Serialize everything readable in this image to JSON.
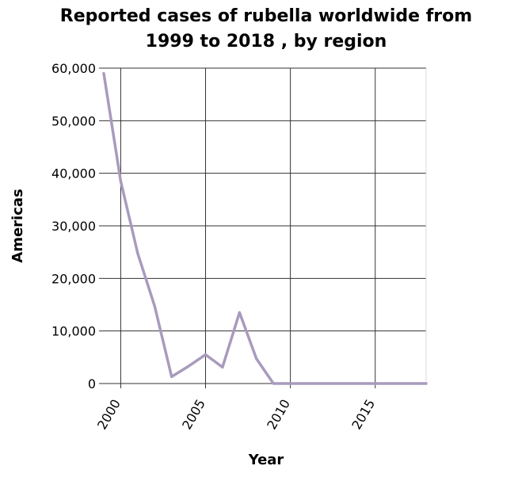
{
  "chart_data": {
    "type": "line",
    "title_line1": "Reported cases of rubella worldwide from",
    "title_line2": "1999 to 2018 , by region",
    "xlabel": "Year",
    "ylabel": "Americas",
    "xlim": [
      1999,
      2018
    ],
    "ylim": [
      0,
      60000
    ],
    "x_ticks": [
      2000,
      2005,
      2010,
      2015
    ],
    "x_tick_labels": [
      "2000",
      "2005",
      "2010",
      "2015"
    ],
    "y_ticks": [
      0,
      10000,
      20000,
      30000,
      40000,
      50000,
      60000
    ],
    "y_tick_labels": [
      "0",
      "10,000",
      "20,000",
      "30,000",
      "40,000",
      "50,000",
      "60,000"
    ],
    "grid": true,
    "line_color": "#a89bbd",
    "series": [
      {
        "x": [
          1999,
          2000,
          2001,
          2002,
          2003,
          2004,
          2005,
          2006,
          2007,
          2008,
          2009,
          2010,
          2011,
          2012,
          2013,
          2014,
          2015,
          2016,
          2017,
          2018
        ],
        "values": [
          59000,
          38500,
          24800,
          14700,
          1300,
          3300,
          5500,
          3100,
          13500,
          4700,
          0,
          0,
          0,
          0,
          0,
          0,
          0,
          0,
          0,
          0
        ]
      }
    ]
  }
}
